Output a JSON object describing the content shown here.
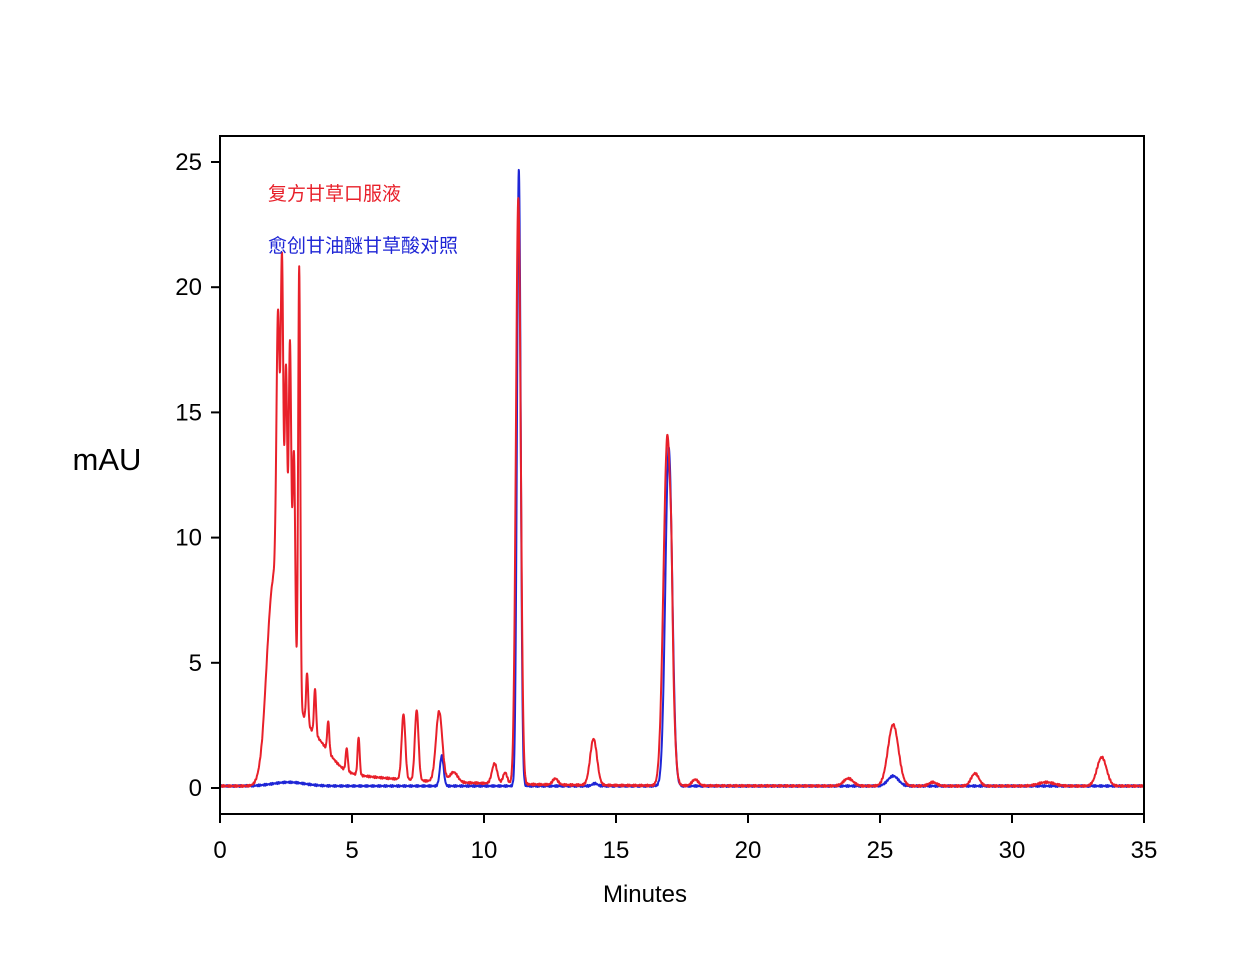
{
  "chart_data": {
    "type": "line",
    "xlabel": "Minutes",
    "ylabel": "mAU",
    "xlim": [
      0,
      35
    ],
    "ylim": [
      -1,
      26
    ],
    "xticks": [
      0,
      5,
      10,
      15,
      20,
      25,
      30,
      35
    ],
    "yticks": [
      0,
      5,
      10,
      15,
      20,
      25
    ],
    "xtick_labels": [
      "0",
      "5",
      "10",
      "15",
      "20",
      "25",
      "30",
      "35"
    ],
    "ytick_labels": [
      "0",
      "5",
      "10",
      "15",
      "20",
      "25"
    ],
    "grid": false,
    "legend_position": "top-left",
    "baseline": 0.08,
    "series": [
      {
        "name": "复方甘草口服液",
        "color": "#e8202a",
        "baseline": 0.08,
        "peaks": [
          [
            2.0,
            6.5,
            0.25
          ],
          [
            2.2,
            11.5,
            0.06
          ],
          [
            2.35,
            15.0,
            0.05
          ],
          [
            2.5,
            12.0,
            0.05
          ],
          [
            2.65,
            13.5,
            0.05
          ],
          [
            2.8,
            9.5,
            0.05
          ],
          [
            3.0,
            17.5,
            0.04
          ],
          [
            2.6,
            2.5,
            0.4
          ],
          [
            3.5,
            1.3,
            0.6
          ],
          [
            3.3,
            2.0,
            0.04
          ],
          [
            3.6,
            1.8,
            0.04
          ],
          [
            4.1,
            1.2,
            0.04
          ],
          [
            4.8,
            0.9,
            0.04
          ],
          [
            5.25,
            1.5,
            0.04
          ],
          [
            6.95,
            2.6,
            0.07
          ],
          [
            7.45,
            2.8,
            0.07
          ],
          [
            8.3,
            2.8,
            0.12
          ],
          [
            8.85,
            0.4,
            0.15
          ],
          [
            10.4,
            0.8,
            0.1
          ],
          [
            10.8,
            0.45,
            0.08
          ],
          [
            11.3,
            23.4,
            0.09
          ],
          [
            12.7,
            0.25,
            0.1
          ],
          [
            14.15,
            1.85,
            0.13
          ],
          [
            16.95,
            14.0,
            0.15
          ],
          [
            17.1,
            1.6,
            0.04
          ],
          [
            18.0,
            0.25,
            0.12
          ],
          [
            23.8,
            0.3,
            0.18
          ],
          [
            25.5,
            2.45,
            0.2
          ],
          [
            27.0,
            0.15,
            0.15
          ],
          [
            28.6,
            0.5,
            0.15
          ],
          [
            31.3,
            0.15,
            0.3
          ],
          [
            33.4,
            1.15,
            0.18
          ]
        ],
        "decay": [
          3.5,
          1.2,
          1.6
        ]
      },
      {
        "name": "愈创甘油醚甘草酸对照",
        "color": "#1f26d6",
        "baseline": 0.08,
        "peaks": [
          [
            2.6,
            0.15,
            0.6
          ],
          [
            8.4,
            1.2,
            0.07
          ],
          [
            11.32,
            24.6,
            0.07
          ],
          [
            14.2,
            0.1,
            0.1
          ],
          [
            17.0,
            13.5,
            0.13
          ],
          [
            25.5,
            0.4,
            0.2
          ]
        ],
        "decay": [
          0,
          0,
          1
        ]
      }
    ]
  }
}
